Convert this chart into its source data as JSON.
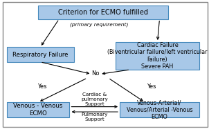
{
  "bg_color": "#ffffff",
  "outer_border_color": "#888888",
  "box_fill": "#a8c8e8",
  "box_edge": "#4488bb",
  "text_color": "#000000",
  "title": "Criterion for ECMO fulfilled",
  "box1_label": "Respiratory Failure",
  "box2_label": "Cardiac Failure\n(Biventricular failure/left ventricular\nFailure)\nSevere PAH",
  "box3_label": "Venous - Venous\nECMO",
  "box4_label": "Venous-Arterial/\nVenous/Arterial -Venous\nECMO",
  "primary_req_label": "(primary requirement)",
  "no_label": "No",
  "yes_left_label": "Yes",
  "yes_right_label": "Yes",
  "cardiac_pulm_label": "Cardiac &\npulmonary\nSupport",
  "pulm_support_label": "Pulmonary\nSupport",
  "font_size_title": 7.0,
  "font_size_box": 6.2,
  "font_size_small_box": 5.8,
  "font_size_label": 6.0,
  "font_size_support": 5.2
}
